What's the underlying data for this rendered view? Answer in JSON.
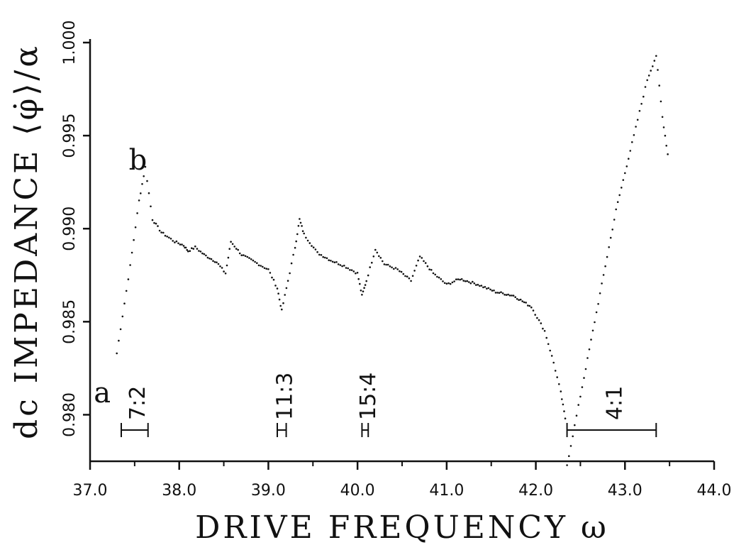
{
  "chart_data": {
    "type": "scatter",
    "xlabel": "DRIVE FREQUENCY ω",
    "ylabel": "dc IMPEDANCE ⟨φ̇⟩/α",
    "xlim": [
      37.0,
      44.0
    ],
    "ylim": [
      0.9775,
      1.0
    ],
    "x_ticks": [
      "37.0",
      "38.0",
      "39.0",
      "40.0",
      "41.0",
      "42.0",
      "43.0",
      "44.0"
    ],
    "y_ticks": [
      "0.980",
      "0.985",
      "0.990",
      "0.995",
      "1.000"
    ],
    "point_labels": [
      {
        "text": "a",
        "x": 37.2,
        "y": 0.9812
      },
      {
        "text": "b",
        "x": 37.6,
        "y": 0.9937
      }
    ],
    "locking_intervals": [
      {
        "label": "7:2",
        "x_start": 37.35,
        "x_end": 37.65
      },
      {
        "label": "11:3",
        "x_start": 39.1,
        "x_end": 39.2
      },
      {
        "label": "15:4",
        "x_start": 40.05,
        "x_end": 40.12
      },
      {
        "label": "4:1",
        "x_start": 42.35,
        "x_end": 43.35
      }
    ],
    "series": [
      {
        "points": [
          [
            37.3,
            0.9833
          ],
          [
            37.45,
            0.988
          ],
          [
            37.55,
            0.9915
          ],
          [
            37.62,
            0.9933
          ],
          [
            37.7,
            0.9905
          ],
          [
            37.8,
            0.9898
          ],
          [
            37.95,
            0.9893
          ],
          [
            38.05,
            0.9891
          ],
          [
            38.1,
            0.9888
          ],
          [
            38.18,
            0.989
          ],
          [
            38.28,
            0.9886
          ],
          [
            38.42,
            0.9882
          ],
          [
            38.52,
            0.9876
          ],
          [
            38.58,
            0.9893
          ],
          [
            38.7,
            0.9886
          ],
          [
            38.85,
            0.9882
          ],
          [
            39.0,
            0.9878
          ],
          [
            39.1,
            0.9868
          ],
          [
            39.15,
            0.9856
          ],
          [
            39.22,
            0.9872
          ],
          [
            39.3,
            0.989
          ],
          [
            39.35,
            0.9905
          ],
          [
            39.4,
            0.9897
          ],
          [
            39.55,
            0.9887
          ],
          [
            39.7,
            0.9883
          ],
          [
            39.85,
            0.988
          ],
          [
            40.0,
            0.9876
          ],
          [
            40.05,
            0.9864
          ],
          [
            40.1,
            0.9872
          ],
          [
            40.2,
            0.9889
          ],
          [
            40.3,
            0.9881
          ],
          [
            40.45,
            0.9878
          ],
          [
            40.6,
            0.9872
          ],
          [
            40.7,
            0.9885
          ],
          [
            40.85,
            0.9876
          ],
          [
            41.0,
            0.987
          ],
          [
            41.15,
            0.9873
          ],
          [
            41.35,
            0.987
          ],
          [
            41.55,
            0.9866
          ],
          [
            41.75,
            0.9864
          ],
          [
            41.95,
            0.9858
          ],
          [
            42.1,
            0.9845
          ],
          [
            42.2,
            0.9828
          ],
          [
            42.28,
            0.9812
          ],
          [
            42.33,
            0.9798
          ]
        ]
      },
      {
        "points": [
          [
            42.35,
            0.9773
          ],
          [
            42.5,
            0.981
          ],
          [
            42.7,
            0.986
          ],
          [
            42.9,
            0.991
          ],
          [
            43.1,
            0.995
          ],
          [
            43.25,
            0.998
          ],
          [
            43.35,
            0.9993
          ],
          [
            43.42,
            0.996
          ],
          [
            43.48,
            0.994
          ]
        ]
      }
    ]
  }
}
